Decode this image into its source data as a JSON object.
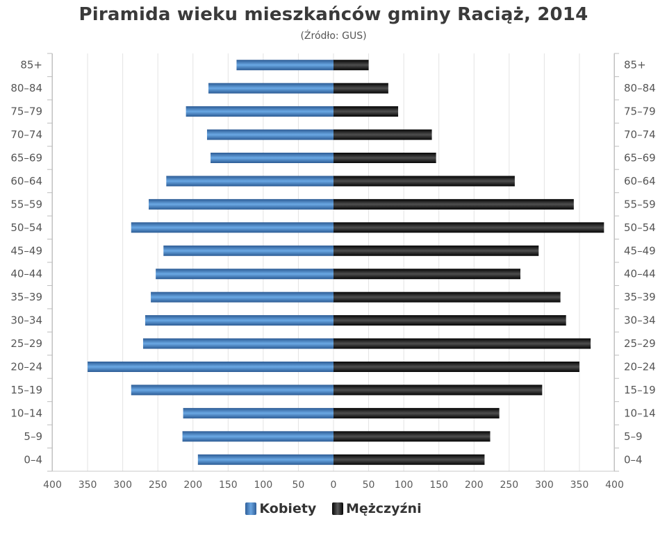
{
  "chart_data": {
    "type": "bar",
    "orientation": "horizontal-population-pyramid",
    "title": "Piramida wieku mieszkańców gminy Raciąż, 2014",
    "subtitle": "(Źródło: GUS)",
    "categories": [
      "85+",
      "80–84",
      "75–79",
      "70–74",
      "65–69",
      "60–64",
      "55–59",
      "50–54",
      "45–49",
      "40–44",
      "35–39",
      "30–34",
      "25–29",
      "20–24",
      "15–19",
      "10–14",
      "5–9",
      "0–4"
    ],
    "series": [
      {
        "name": "Kobiety",
        "color": "#4a86c8",
        "values": [
          138,
          178,
          210,
          180,
          175,
          238,
          263,
          288,
          242,
          253,
          260,
          268,
          271,
          350,
          288,
          214,
          215,
          193
        ]
      },
      {
        "name": "Mężczyźni",
        "color": "#1a1a1a",
        "values": [
          50,
          78,
          92,
          140,
          146,
          258,
          342,
          385,
          292,
          266,
          323,
          331,
          366,
          350,
          297,
          236,
          223,
          215
        ]
      }
    ],
    "xticks": [
      "400",
      "350",
      "300",
      "250",
      "200",
      "150",
      "100",
      "50",
      "0",
      "50",
      "100",
      "150",
      "200",
      "250",
      "300",
      "350",
      "400"
    ],
    "xlim": [
      -400,
      400
    ],
    "grid": true,
    "legend_position": "bottom"
  }
}
